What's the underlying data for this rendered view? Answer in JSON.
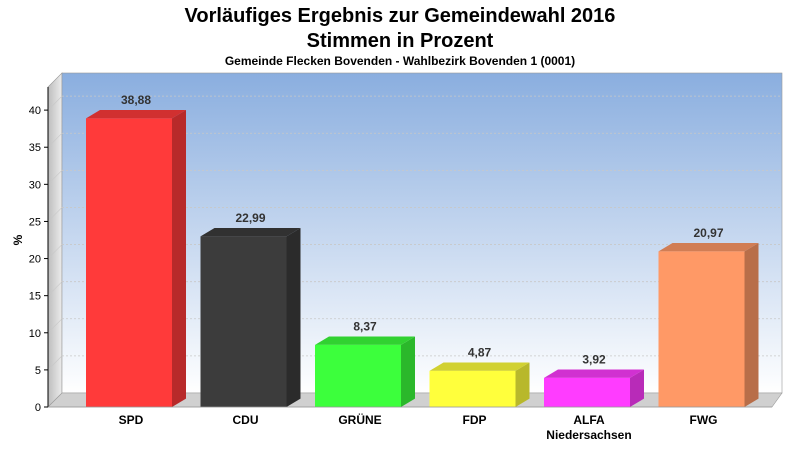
{
  "chart_data": {
    "type": "bar",
    "title": "Vorläufiges Ergebnis zur Gemeindewahl 2016",
    "subtitle_line2": "Stimmen in Prozent",
    "subtitle": "Gemeinde Flecken Bovenden - Wahlbezirk Bovenden 1 (0001)",
    "ylabel": "%",
    "xlabel": "",
    "ylim": [
      0,
      45
    ],
    "yticks": [
      0,
      5,
      10,
      15,
      20,
      25,
      30,
      35,
      40
    ],
    "grid": true,
    "categories": [
      {
        "lines": [
          "SPD"
        ]
      },
      {
        "lines": [
          "CDU"
        ]
      },
      {
        "lines": [
          "GRÜNE"
        ]
      },
      {
        "lines": [
          "FDP"
        ]
      },
      {
        "lines": [
          "ALFA",
          "Niedersachsen"
        ]
      },
      {
        "lines": [
          "FWG"
        ]
      }
    ],
    "values": [
      38.88,
      22.99,
      8.37,
      4.87,
      3.92,
      20.97
    ],
    "value_labels": [
      "38,88",
      "22,99",
      "8,37",
      "4,87",
      "3,92",
      "20,97"
    ],
    "colors": [
      "#ff3a3a",
      "#3c3c3c",
      "#3cff3c",
      "#ffff3c",
      "#ff3cff",
      "#ff9966"
    ],
    "background_gradient": [
      "#8aaedf",
      "#ffffff"
    ]
  }
}
